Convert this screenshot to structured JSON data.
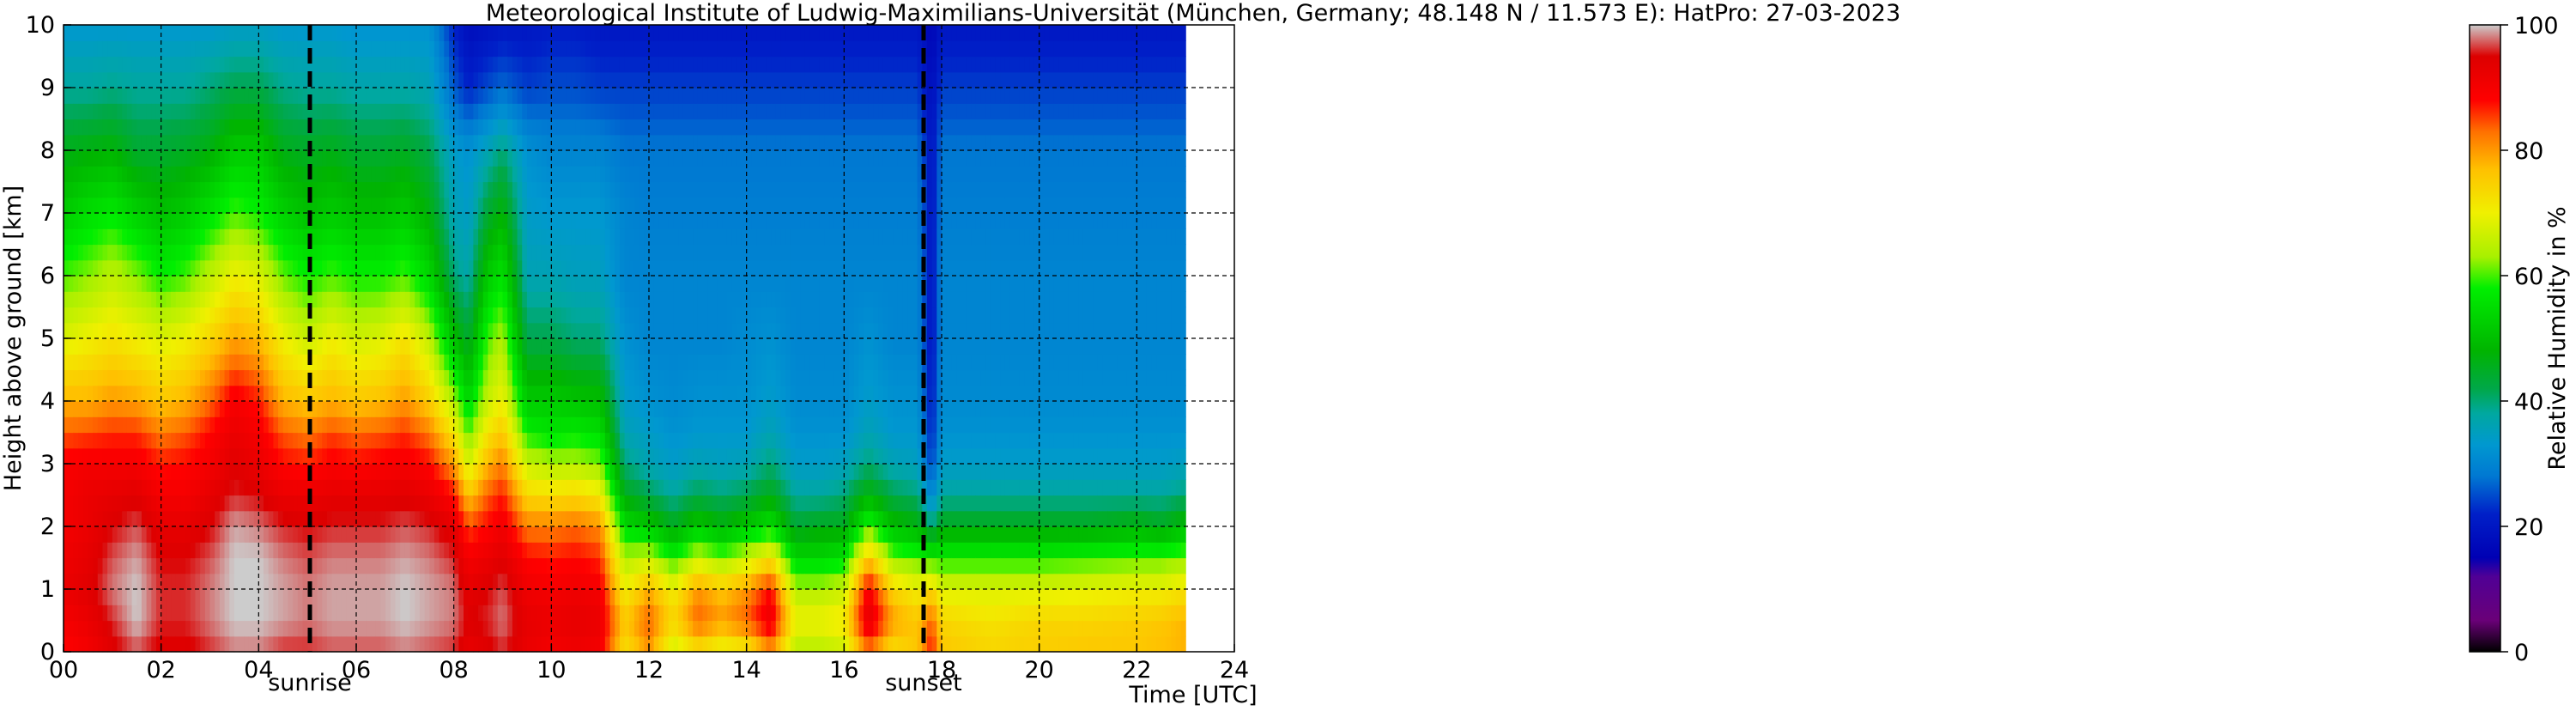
{
  "chart_data": {
    "type": "heatmap",
    "title": "Meteorological Institute of Ludwig-Maximilians-Universität (München, Germany; 48.148 N / 11.573 E):    HatPro: 27-03-2023",
    "xlabel": "Time [UTC]",
    "ylabel": "Height above ground [km]",
    "xlim": [
      0,
      24
    ],
    "ylim": [
      0,
      10
    ],
    "data_end_hour": 23.0,
    "x_ticks": [
      "00",
      "02",
      "04",
      "06",
      "08",
      "10",
      "12",
      "14",
      "16",
      "18",
      "20",
      "22",
      "24"
    ],
    "y_ticks": [
      "0",
      "1",
      "2",
      "3",
      "4",
      "5",
      "6",
      "7",
      "8",
      "9",
      "10"
    ],
    "grid": true,
    "markers": [
      {
        "label": "sunrise",
        "x": 5.05
      },
      {
        "label": "sunset",
        "x": 17.63
      }
    ],
    "colorbar": {
      "label": "Relative Humidity in %",
      "range": [
        0,
        100
      ],
      "ticks": [
        "0",
        "20",
        "40",
        "60",
        "80",
        "100"
      ],
      "stops": [
        [
          0,
          "#000000"
        ],
        [
          5,
          "#6a0078"
        ],
        [
          12,
          "#500096"
        ],
        [
          15,
          "#0000b4"
        ],
        [
          22,
          "#0020c8"
        ],
        [
          28,
          "#0078d2"
        ],
        [
          33,
          "#0098d0"
        ],
        [
          38,
          "#00a8a0"
        ],
        [
          42,
          "#00a848"
        ],
        [
          48,
          "#00b400"
        ],
        [
          58,
          "#00ef00"
        ],
        [
          63,
          "#a8f000"
        ],
        [
          70,
          "#f0f000"
        ],
        [
          77,
          "#ffc000"
        ],
        [
          83,
          "#ff7000"
        ],
        [
          88,
          "#ff0000"
        ],
        [
          95,
          "#dc0000"
        ],
        [
          100,
          "#cccccc"
        ]
      ]
    },
    "height_km": [
      0,
      0.5,
      1,
      1.5,
      2,
      2.5,
      3,
      3.5,
      4,
      5,
      6,
      7,
      8,
      9,
      10
    ],
    "profiles": [
      {
        "t": 0.0,
        "rh": [
          88,
          90,
          92,
          91,
          90,
          90,
          89,
          84,
          78,
          68,
          60,
          52,
          46,
          38,
          33
        ]
      },
      {
        "t": 0.5,
        "rh": [
          90,
          92,
          94,
          93,
          92,
          92,
          90,
          85,
          78,
          70,
          62,
          55,
          47,
          38,
          33
        ]
      },
      {
        "t": 1.0,
        "rh": [
          94,
          96,
          98,
          97,
          95,
          93,
          90,
          86,
          80,
          72,
          65,
          57,
          48,
          39,
          33
        ]
      },
      {
        "t": 1.5,
        "rh": [
          97,
          100,
          100,
          99,
          97,
          94,
          90,
          86,
          79,
          70,
          62,
          53,
          44,
          38,
          33
        ]
      },
      {
        "t": 2.0,
        "rh": [
          94,
          96,
          96,
          95,
          93,
          90,
          87,
          82,
          76,
          68,
          58,
          50,
          44,
          38,
          33
        ]
      },
      {
        "t": 2.5,
        "rh": [
          94,
          96,
          96,
          95,
          93,
          90,
          88,
          84,
          78,
          70,
          60,
          52,
          45,
          38,
          33
        ]
      },
      {
        "t": 3.0,
        "rh": [
          96,
          98,
          98,
          97,
          95,
          93,
          90,
          88,
          83,
          74,
          65,
          56,
          47,
          40,
          33
        ]
      },
      {
        "t": 3.5,
        "rh": [
          98,
          100,
          100,
          100,
          99,
          96,
          94,
          92,
          90,
          79,
          70,
          60,
          52,
          42,
          34
        ]
      },
      {
        "t": 4.0,
        "rh": [
          98,
          100,
          100,
          100,
          98,
          95,
          92,
          90,
          87,
          77,
          68,
          58,
          52,
          42,
          34
        ]
      },
      {
        "t": 4.5,
        "rh": [
          96,
          99,
          99,
          98,
          96,
          92,
          88,
          84,
          78,
          70,
          61,
          53,
          46,
          39,
          33
        ]
      },
      {
        "t": 5.0,
        "rh": [
          96,
          98,
          98,
          97,
          95,
          92,
          87,
          82,
          76,
          66,
          58,
          50,
          45,
          38,
          33
        ]
      },
      {
        "t": 5.5,
        "rh": [
          97,
          99,
          99,
          98,
          96,
          93,
          89,
          85,
          78,
          70,
          60,
          52,
          46,
          38,
          33
        ]
      },
      {
        "t": 6.0,
        "rh": [
          97,
          99,
          99,
          98,
          96,
          93,
          88,
          83,
          76,
          67,
          58,
          50,
          44,
          37,
          32
        ]
      },
      {
        "t": 6.5,
        "rh": [
          97,
          99,
          99,
          98,
          96,
          93,
          89,
          84,
          77,
          68,
          58,
          50,
          44,
          37,
          32
        ]
      },
      {
        "t": 7.0,
        "rh": [
          98,
          100,
          100,
          99,
          97,
          94,
          90,
          86,
          80,
          72,
          60,
          52,
          45,
          37,
          32
        ]
      },
      {
        "t": 7.5,
        "rh": [
          97,
          99,
          99,
          98,
          96,
          92,
          88,
          82,
          75,
          65,
          54,
          47,
          42,
          36,
          32
        ]
      },
      {
        "t": 8.0,
        "rh": [
          96,
          98,
          98,
          96,
          93,
          88,
          80,
          72,
          64,
          50,
          40,
          36,
          34,
          26,
          22
        ]
      },
      {
        "t": 8.3,
        "rh": [
          92,
          95,
          93,
          90,
          85,
          76,
          67,
          60,
          54,
          44,
          37,
          34,
          32,
          22,
          18
        ]
      },
      {
        "t": 8.7,
        "rh": [
          94,
          96,
          95,
          92,
          88,
          84,
          78,
          72,
          66,
          60,
          52,
          44,
          36,
          25,
          19
        ]
      },
      {
        "t": 9.0,
        "rh": [
          96,
          98,
          97,
          94,
          91,
          87,
          82,
          76,
          70,
          64,
          56,
          48,
          40,
          27,
          20
        ]
      },
      {
        "t": 9.5,
        "rh": [
          92,
          93,
          91,
          88,
          82,
          74,
          66,
          58,
          52,
          42,
          36,
          34,
          32,
          24,
          20
        ]
      },
      {
        "t": 10.0,
        "rh": [
          90,
          92,
          90,
          87,
          82,
          73,
          64,
          56,
          52,
          42,
          36,
          33,
          30,
          25,
          21
        ]
      },
      {
        "t": 10.5,
        "rh": [
          91,
          93,
          91,
          88,
          83,
          74,
          64,
          57,
          51,
          40,
          35,
          33,
          30,
          25,
          21
        ]
      },
      {
        "t": 11.0,
        "rh": [
          90,
          92,
          90,
          86,
          81,
          71,
          62,
          55,
          50,
          40,
          35,
          33,
          30,
          24,
          20
        ]
      },
      {
        "t": 11.5,
        "rh": [
          72,
          76,
          70,
          64,
          55,
          46,
          40,
          36,
          34,
          32,
          30,
          30,
          28,
          24,
          20
        ]
      },
      {
        "t": 12.0,
        "rh": [
          80,
          84,
          78,
          66,
          52,
          42,
          36,
          34,
          32,
          30,
          30,
          29,
          28,
          24,
          20
        ]
      },
      {
        "t": 12.5,
        "rh": [
          66,
          74,
          70,
          58,
          46,
          38,
          34,
          32,
          31,
          30,
          30,
          29,
          28,
          24,
          20
        ]
      },
      {
        "t": 13.0,
        "rh": [
          72,
          84,
          80,
          66,
          52,
          42,
          36,
          33,
          32,
          30,
          30,
          29,
          28,
          24,
          20
        ]
      },
      {
        "t": 13.5,
        "rh": [
          68,
          80,
          76,
          62,
          48,
          40,
          35,
          33,
          32,
          30,
          30,
          29,
          28,
          24,
          20
        ]
      },
      {
        "t": 14.0,
        "rh": [
          70,
          84,
          80,
          66,
          52,
          42,
          36,
          33,
          32,
          31,
          30,
          29,
          28,
          24,
          20
        ]
      },
      {
        "t": 14.5,
        "rh": [
          80,
          92,
          88,
          72,
          56,
          46,
          40,
          36,
          34,
          32,
          30,
          29,
          28,
          24,
          20
        ]
      },
      {
        "t": 15.0,
        "rh": [
          64,
          70,
          64,
          54,
          44,
          38,
          34,
          32,
          31,
          30,
          30,
          29,
          28,
          24,
          20
        ]
      },
      {
        "t": 15.5,
        "rh": [
          64,
          70,
          64,
          54,
          46,
          38,
          34,
          32,
          31,
          30,
          30,
          29,
          28,
          24,
          20
        ]
      },
      {
        "t": 16.0,
        "rh": [
          66,
          72,
          66,
          56,
          46,
          40,
          35,
          32,
          31,
          30,
          30,
          29,
          28,
          24,
          20
        ]
      },
      {
        "t": 16.5,
        "rh": [
          82,
          94,
          90,
          76,
          60,
          48,
          40,
          36,
          34,
          32,
          30,
          29,
          28,
          24,
          20
        ]
      },
      {
        "t": 17.0,
        "rh": [
          72,
          80,
          74,
          62,
          50,
          42,
          36,
          33,
          32,
          30,
          30,
          29,
          28,
          24,
          20
        ]
      },
      {
        "t": 17.5,
        "rh": [
          76,
          76,
          70,
          60,
          48,
          40,
          35,
          33,
          32,
          30,
          30,
          29,
          28,
          24,
          20
        ]
      },
      {
        "t": 17.8,
        "rh": [
          88,
          84,
          74,
          58,
          40,
          30,
          24,
          22,
          21,
          20,
          20,
          20,
          20,
          18,
          16
        ]
      },
      {
        "t": 18.0,
        "rh": [
          76,
          74,
          68,
          58,
          46,
          38,
          34,
          32,
          31,
          30,
          30,
          29,
          28,
          24,
          20
        ]
      },
      {
        "t": 19.0,
        "rh": [
          74,
          72,
          68,
          58,
          46,
          38,
          34,
          32,
          31,
          30,
          30,
          29,
          28,
          24,
          20
        ]
      },
      {
        "t": 20.0,
        "rh": [
          75,
          74,
          68,
          58,
          46,
          38,
          34,
          32,
          31,
          30,
          30,
          29,
          28,
          24,
          20
        ]
      },
      {
        "t": 21.0,
        "rh": [
          76,
          74,
          69,
          59,
          46,
          38,
          34,
          32,
          31,
          30,
          30,
          29,
          28,
          24,
          20
        ]
      },
      {
        "t": 22.0,
        "rh": [
          76,
          75,
          70,
          60,
          48,
          38,
          34,
          32,
          31,
          30,
          30,
          29,
          28,
          24,
          20
        ]
      },
      {
        "t": 22.5,
        "rh": [
          77,
          76,
          70,
          60,
          46,
          38,
          34,
          32,
          31,
          30,
          30,
          29,
          28,
          24,
          20
        ]
      },
      {
        "t": 23.0,
        "rh": [
          78,
          78,
          72,
          62,
          50,
          40,
          35,
          32,
          31,
          30,
          30,
          29,
          28,
          24,
          20
        ]
      }
    ]
  }
}
